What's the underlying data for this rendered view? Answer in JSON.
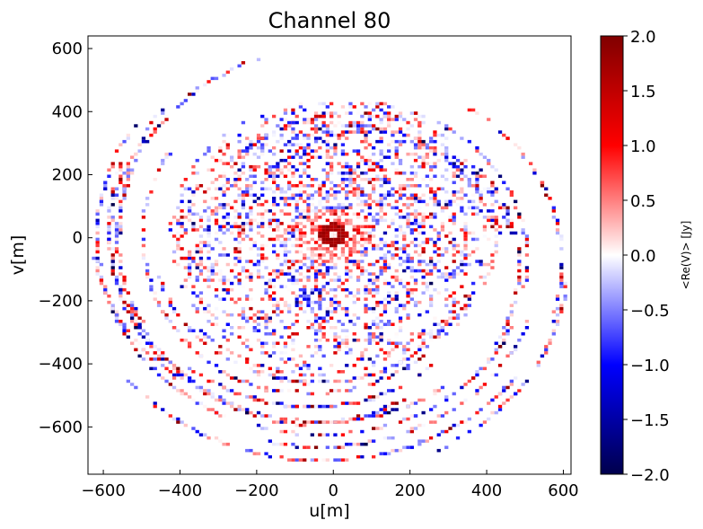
{
  "chart_data": {
    "type": "heatmap",
    "title": "Channel 80",
    "xlabel": "u[m]",
    "ylabel": "v[m]",
    "xlim": [
      -640,
      620
    ],
    "ylim": [
      -750,
      640
    ],
    "xticks": [
      -600,
      -400,
      -200,
      0,
      200,
      400,
      600
    ],
    "xtick_labels": [
      "−600",
      "−400",
      "−200",
      "0",
      "200",
      "400",
      "600"
    ],
    "yticks": [
      -600,
      -400,
      -200,
      0,
      200,
      400,
      600
    ],
    "ytick_labels": [
      "−600",
      "−400",
      "−200",
      "0",
      "200",
      "400",
      "600"
    ],
    "colorbar": {
      "label": "<Re(V)> [Jy]",
      "range": [
        -2.0,
        2.0
      ],
      "ticks": [
        -2.0,
        -1.5,
        -1.0,
        -0.5,
        0.0,
        0.5,
        1.0,
        1.5,
        2.0
      ],
      "tick_labels": [
        "−2.0",
        "−1.5",
        "−1.0",
        "−0.5",
        "0.0",
        "0.5",
        "1.0",
        "1.5",
        "2.0"
      ],
      "colormap": "seismic",
      "colors": [
        "#00004c",
        "#0000ff",
        "#ffffff",
        "#ff0000",
        "#800000"
      ]
    },
    "grid": false,
    "description_of_field": {
      "dense_core_radius_m": 430,
      "bright_center_u_m": 0,
      "bright_center_v_m": 0,
      "bright_center_value": 1.5,
      "outer_arc_radius_max_m": 640
    }
  }
}
